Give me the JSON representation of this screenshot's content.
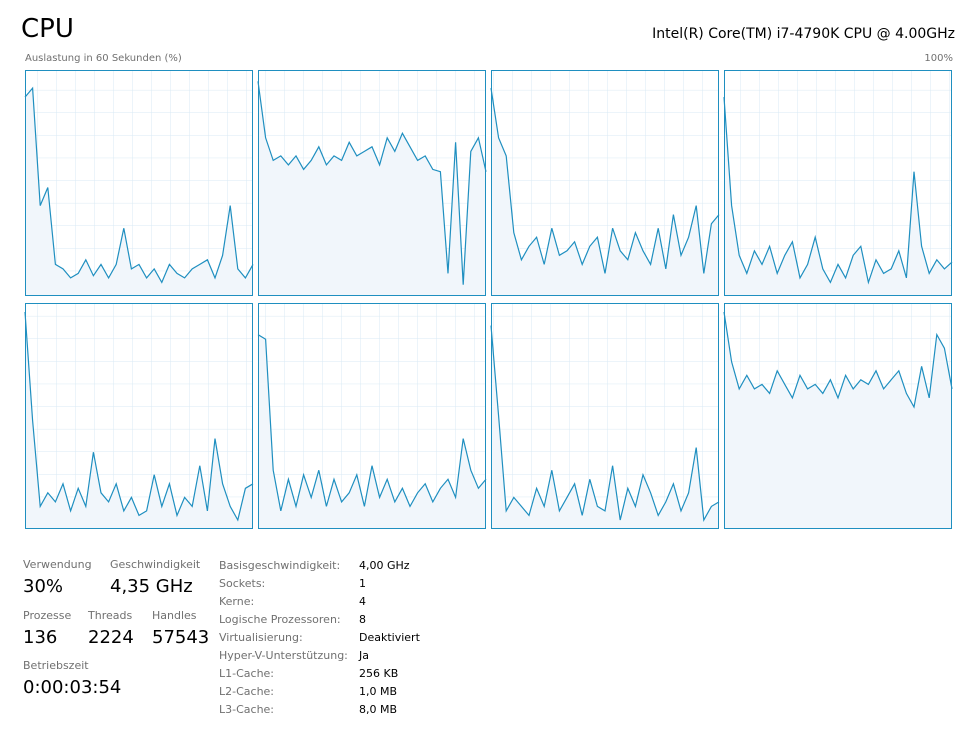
{
  "header": {
    "title": "CPU",
    "processor": "Intel(R) Core(TM) i7-4790K CPU @ 4.00GHz"
  },
  "chart_data": {
    "type": "line",
    "y_label": "Auslastung in 60 Sekunden (%)",
    "y_max_label": "100%",
    "ylim": [
      0,
      100
    ],
    "color": "#1f8fc0",
    "series": [
      {
        "values": [
          88,
          92,
          40,
          48,
          14,
          12,
          8,
          10,
          16,
          9,
          14,
          8,
          14,
          30,
          12,
          14,
          8,
          12,
          6,
          14,
          10,
          8,
          12,
          14,
          16,
          8,
          18,
          40,
          12,
          8,
          14
        ]
      },
      {
        "values": [
          95,
          70,
          60,
          62,
          58,
          62,
          56,
          60,
          66,
          58,
          62,
          60,
          68,
          62,
          64,
          66,
          58,
          70,
          64,
          72,
          66,
          60,
          62,
          56,
          55,
          10,
          68,
          5,
          64,
          70,
          55
        ]
      },
      {
        "values": [
          92,
          70,
          62,
          28,
          16,
          22,
          26,
          14,
          30,
          18,
          20,
          24,
          14,
          22,
          26,
          10,
          30,
          20,
          16,
          28,
          20,
          14,
          30,
          12,
          36,
          18,
          26,
          40,
          10,
          32,
          36
        ]
      },
      {
        "values": [
          88,
          40,
          18,
          10,
          20,
          14,
          22,
          10,
          18,
          24,
          8,
          14,
          26,
          12,
          6,
          14,
          8,
          18,
          22,
          6,
          16,
          10,
          12,
          20,
          8,
          55,
          22,
          10,
          16,
          12,
          15
        ]
      },
      {
        "values": [
          96,
          48,
          10,
          16,
          12,
          20,
          8,
          18,
          10,
          34,
          16,
          12,
          20,
          8,
          14,
          6,
          8,
          24,
          10,
          20,
          6,
          14,
          10,
          28,
          8,
          40,
          20,
          10,
          4,
          18,
          20
        ]
      },
      {
        "values": [
          86,
          84,
          26,
          8,
          22,
          10,
          24,
          14,
          26,
          10,
          22,
          12,
          16,
          24,
          10,
          28,
          14,
          22,
          12,
          18,
          10,
          16,
          20,
          12,
          18,
          22,
          14,
          40,
          26,
          18,
          22
        ]
      },
      {
        "values": [
          90,
          50,
          8,
          14,
          10,
          6,
          18,
          10,
          26,
          8,
          14,
          20,
          6,
          22,
          10,
          8,
          28,
          4,
          18,
          10,
          24,
          16,
          6,
          12,
          20,
          8,
          16,
          36,
          4,
          10,
          12
        ]
      },
      {
        "values": [
          96,
          74,
          62,
          68,
          62,
          64,
          60,
          70,
          64,
          58,
          68,
          62,
          64,
          60,
          66,
          58,
          68,
          62,
          66,
          64,
          70,
          62,
          66,
          70,
          60,
          54,
          72,
          58,
          86,
          80,
          62
        ]
      }
    ]
  },
  "stats": [
    {
      "label": "Verwendung",
      "value": "30%"
    },
    {
      "label": "Geschwindigkeit",
      "value": "4,35 GHz"
    },
    {
      "label": "Prozesse",
      "value": "136"
    },
    {
      "label": "Threads",
      "value": "2224"
    },
    {
      "label": "Handles",
      "value": "57543"
    },
    {
      "label": "Betriebszeit",
      "value": "0:00:03:54"
    }
  ],
  "details": [
    [
      "Basisgeschwindigkeit:",
      "4,00 GHz"
    ],
    [
      "Sockets:",
      "1"
    ],
    [
      "Kerne:",
      "4"
    ],
    [
      "Logische Prozessoren:",
      "8"
    ],
    [
      "Virtualisierung:",
      "Deaktiviert"
    ],
    [
      "Hyper-V-Unterstützung:",
      "Ja"
    ],
    [
      "L1-Cache:",
      "256 KB"
    ],
    [
      "L2-Cache:",
      "1,0 MB"
    ],
    [
      "L3-Cache:",
      "8,0 MB"
    ]
  ]
}
